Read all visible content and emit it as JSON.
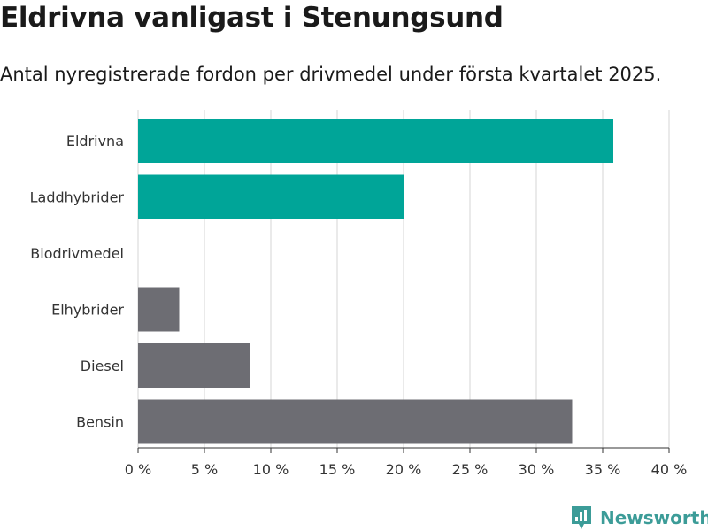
{
  "header": {
    "title": "Eldrivna vanligast i Stenungsund",
    "subtitle": "Antal nyregistrerade fordon per drivmedel under första kvartalet 2025."
  },
  "brand": {
    "name": "Newsworthy",
    "icon": "newsworthy-logo-icon",
    "color": "#3c9c98"
  },
  "chart_data": {
    "type": "bar",
    "orientation": "horizontal",
    "title": "",
    "xlabel": "",
    "ylabel": "",
    "categories": [
      "Eldrivna",
      "Laddhybrider",
      "Biodrivmedel",
      "Elhybrider",
      "Diesel",
      "Bensin"
    ],
    "values": [
      35.8,
      20.0,
      0,
      3.1,
      8.4,
      32.7
    ],
    "bar_colors": [
      "#00a598",
      "#00a598",
      "#6d6d73",
      "#6d6d73",
      "#6d6d73",
      "#6d6d73"
    ],
    "xlim": [
      0,
      40
    ],
    "x_ticks": [
      0,
      5,
      10,
      15,
      20,
      25,
      30,
      35,
      40
    ],
    "x_tick_labels": [
      "0 %",
      "5 %",
      "10 %",
      "15 %",
      "20 %",
      "25 %",
      "30 %",
      "35 %",
      "40 %"
    ],
    "grid": true,
    "legend": "none"
  }
}
